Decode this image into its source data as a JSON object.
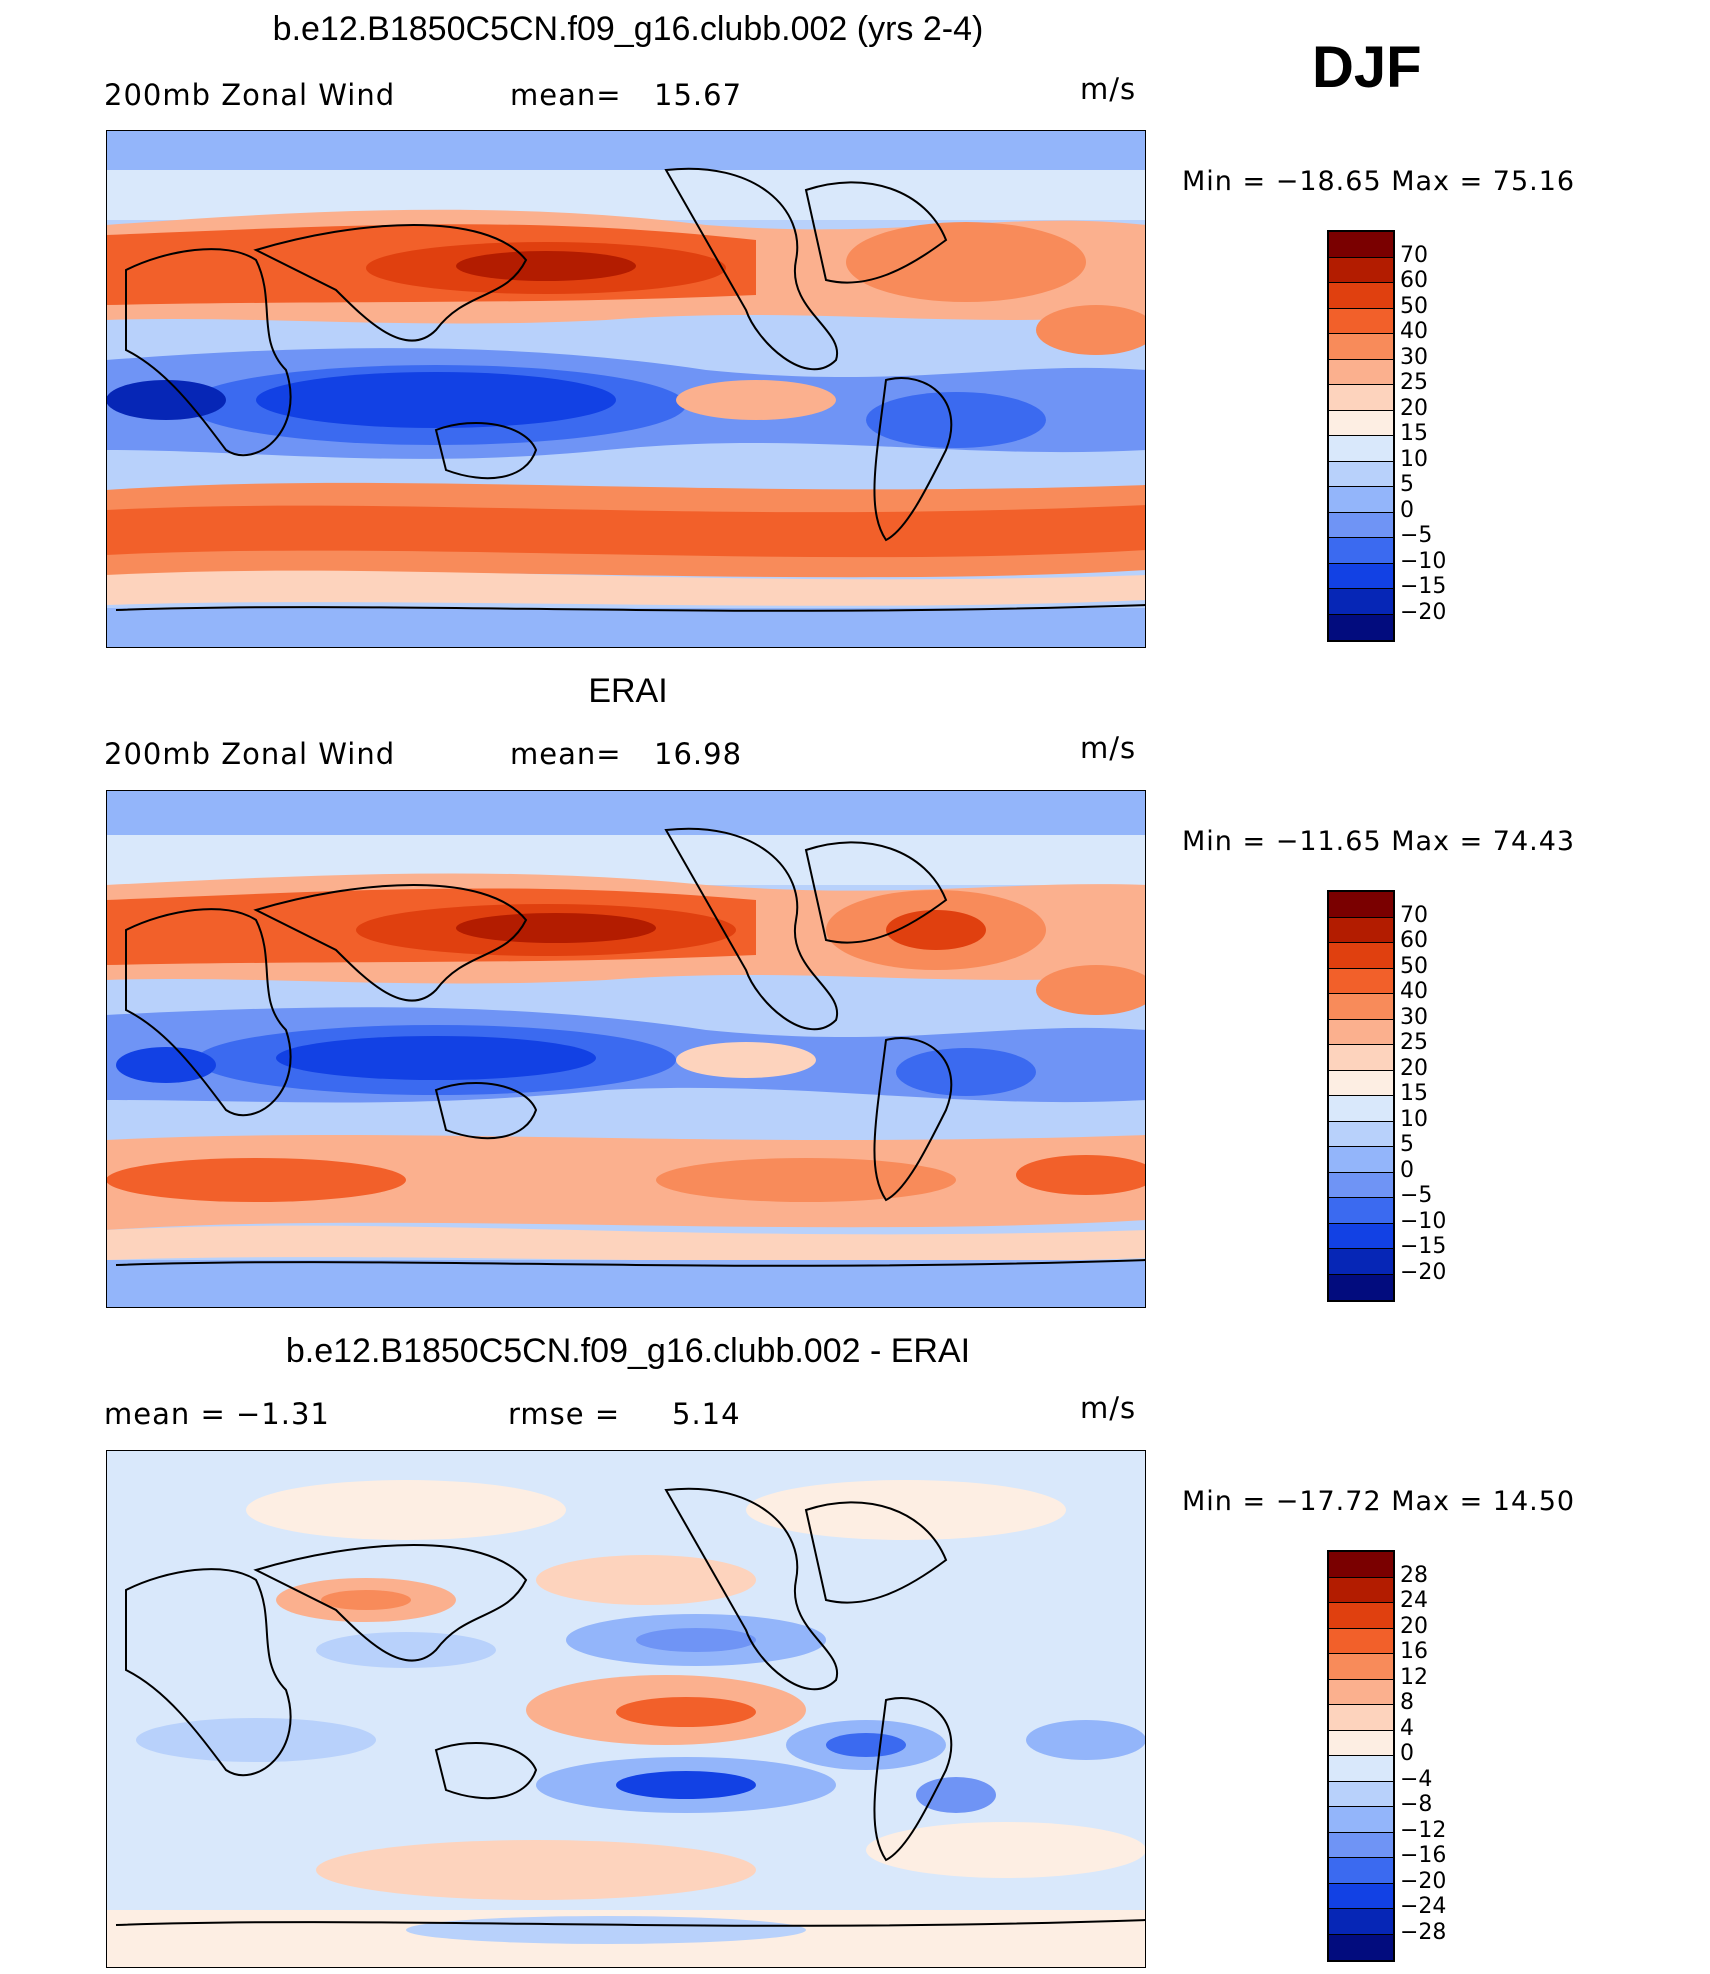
{
  "season": "DJF",
  "panels": [
    {
      "title": "b.e12.B1850C5CN.f09_g16.clubb.002 (yrs 2-4)",
      "left_label": "200mb  Zonal  Wind",
      "mid_label": "mean=",
      "mid_value": "15.67",
      "units": "m/s",
      "min_label": "Min  =  −18.65  Max  =     75.16",
      "levels": [
        "70",
        "60",
        "50",
        "40",
        "30",
        "25",
        "20",
        "15",
        "10",
        "5",
        "0",
        "−5",
        "−10",
        "−15",
        "−20"
      ]
    },
    {
      "title": "ERAI",
      "left_label": "200mb  Zonal  Wind",
      "mid_label": "mean=",
      "mid_value": "16.98",
      "units": "m/s",
      "min_label": "Min  =  −11.65  Max  =     74.43",
      "levels": [
        "70",
        "60",
        "50",
        "40",
        "30",
        "25",
        "20",
        "15",
        "10",
        "5",
        "0",
        "−5",
        "−10",
        "−15",
        "−20"
      ]
    },
    {
      "title": "b.e12.B1850C5CN.f09_g16.clubb.002 - ERAI",
      "left_label": "mean  =     −1.31",
      "mid_label": "rmse  =",
      "mid_value": "5.14",
      "units": "m/s",
      "min_label": "Min  =  −17.72  Max  =     14.50",
      "levels": [
        "28",
        "24",
        "20",
        "16",
        "12",
        "8",
        "4",
        "0",
        "−4",
        "−8",
        "−12",
        "−16",
        "−20",
        "−24",
        "−28"
      ]
    }
  ],
  "colors": {
    "abs_scale": [
      "#7a0000",
      "#b31c00",
      "#e0400f",
      "#f2602a",
      "#f88b5a",
      "#fbb08e",
      "#fdd3bd",
      "#fdeee3",
      "#d9e8fb",
      "#b8d1fb",
      "#93b5fa",
      "#6f94f5",
      "#3b6af0",
      "#1241e4",
      "#0626b6",
      "#020c7e"
    ],
    "diff_scale": [
      "#7a0000",
      "#b31c00",
      "#e0400f",
      "#f2602a",
      "#f88b5a",
      "#fbb08e",
      "#fdd3bd",
      "#fdeee3",
      "#d9e8fb",
      "#b8d1fb",
      "#93b5fa",
      "#6f94f5",
      "#3b6af0",
      "#1241e4",
      "#0626b6",
      "#020c7e"
    ]
  }
}
